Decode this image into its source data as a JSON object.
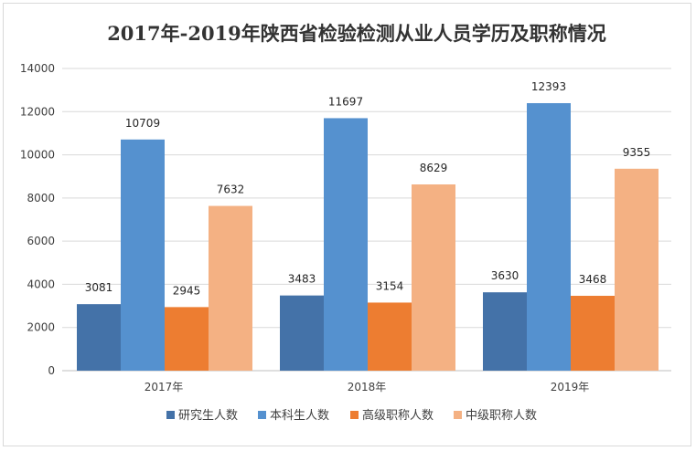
{
  "chart_data": {
    "type": "bar",
    "title": "2017年-2019年陕西省检验检测从业人员学历及职称情况",
    "categories": [
      "2017年",
      "2018年",
      "2019年"
    ],
    "series": [
      {
        "name": "研究生人数",
        "color": "#4472a8",
        "values": [
          3081,
          3483,
          3630
        ]
      },
      {
        "name": "本科生人数",
        "color": "#5591cf",
        "values": [
          10709,
          11697,
          12393
        ]
      },
      {
        "name": "高级职称人数",
        "color": "#ed7d31",
        "values": [
          2945,
          3154,
          3468
        ]
      },
      {
        "name": "中级职称人数",
        "color": "#f4b183",
        "values": [
          7632,
          8629,
          9355
        ]
      }
    ],
    "yticks": [
      0,
      2000,
      4000,
      6000,
      8000,
      10000,
      12000,
      14000
    ],
    "ylim": [
      0,
      14000
    ],
    "xlabel": "",
    "ylabel": "",
    "grid": true,
    "legend": "bottom"
  }
}
